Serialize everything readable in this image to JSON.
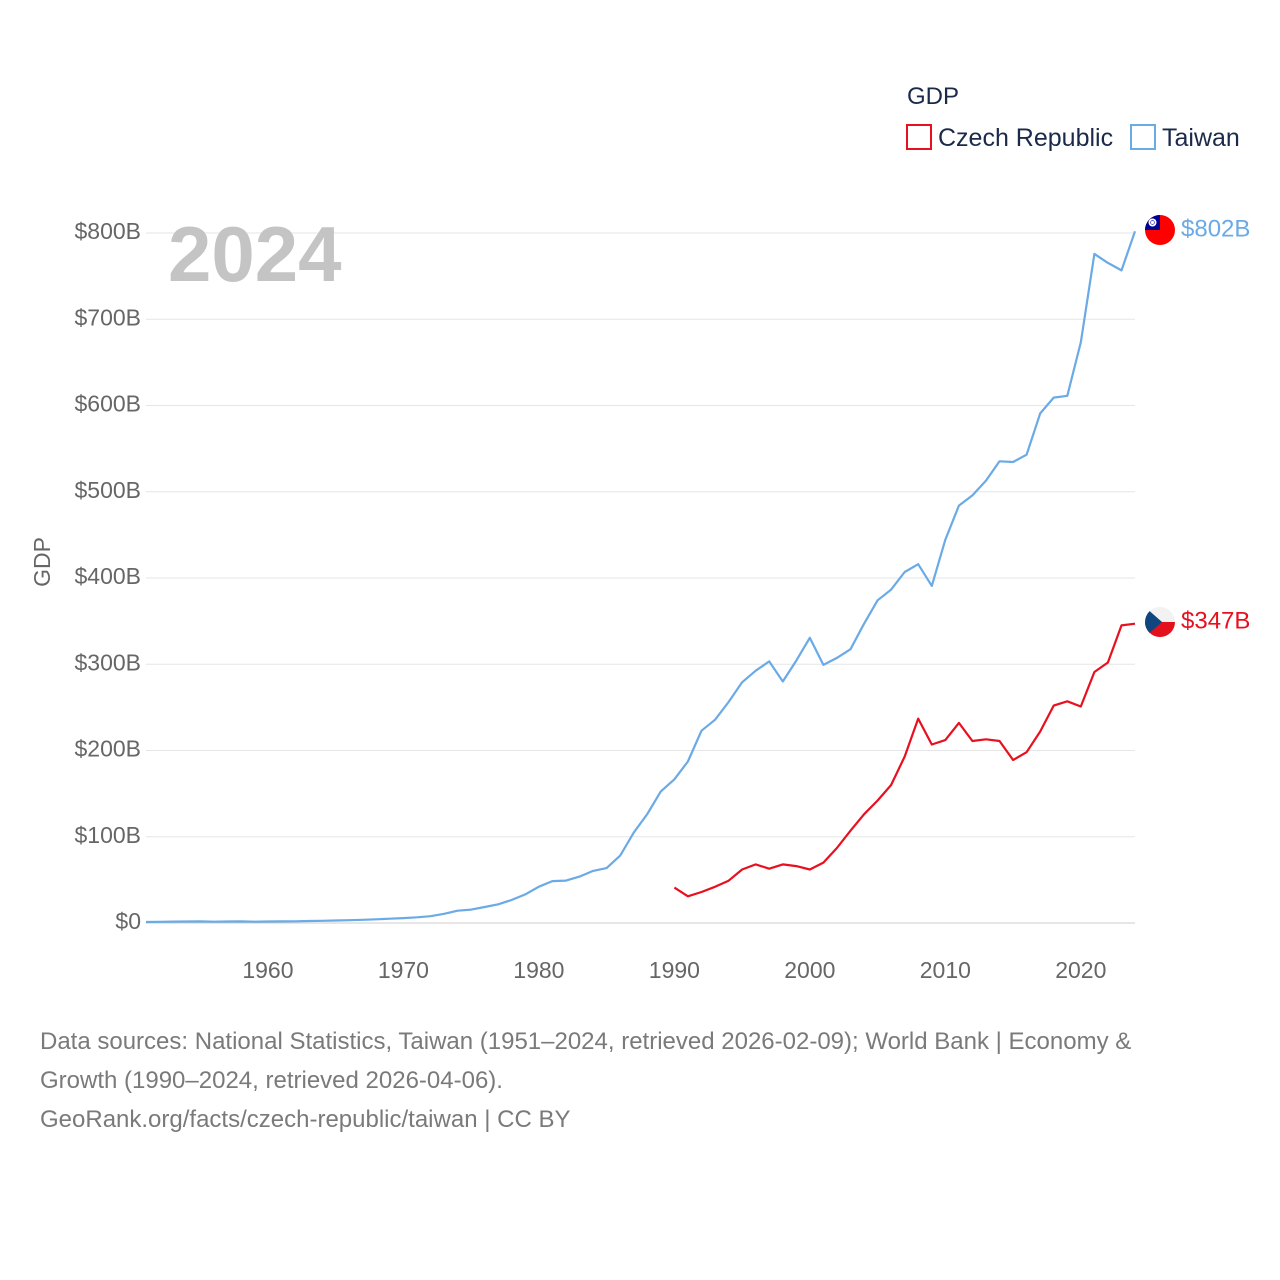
{
  "chart_data": {
    "type": "line",
    "year_label": "2024",
    "ylabel": "GDP",
    "legend_title": "GDP",
    "ylim": [
      0,
      800
    ],
    "xlim": [
      1951,
      2024
    ],
    "y_ticks": [
      {
        "value": 0,
        "label": "$0"
      },
      {
        "value": 100,
        "label": "$100B"
      },
      {
        "value": 200,
        "label": "$200B"
      },
      {
        "value": 300,
        "label": "$300B"
      },
      {
        "value": 400,
        "label": "$400B"
      },
      {
        "value": 500,
        "label": "$500B"
      },
      {
        "value": 600,
        "label": "$600B"
      },
      {
        "value": 700,
        "label": "$700B"
      },
      {
        "value": 800,
        "label": "$800B"
      }
    ],
    "x_ticks": [
      {
        "value": 1960,
        "label": "1960"
      },
      {
        "value": 1970,
        "label": "1970"
      },
      {
        "value": 1980,
        "label": "1980"
      },
      {
        "value": 1990,
        "label": "1990"
      },
      {
        "value": 2000,
        "label": "2000"
      },
      {
        "value": 2010,
        "label": "2010"
      },
      {
        "value": 2020,
        "label": "2020"
      }
    ],
    "series": [
      {
        "name": "Czech Republic",
        "color": "#e8101f",
        "end_label": "$347B",
        "flag": "czech-flag",
        "x": [
          1990,
          1991,
          1992,
          1993,
          1994,
          1995,
          1996,
          1997,
          1998,
          1999,
          2000,
          2001,
          2002,
          2003,
          2004,
          2005,
          2006,
          2007,
          2008,
          2009,
          2010,
          2011,
          2012,
          2013,
          2014,
          2015,
          2016,
          2017,
          2018,
          2019,
          2020,
          2021,
          2022,
          2023,
          2024
        ],
        "values": [
          41,
          31,
          36,
          42,
          49,
          62,
          68,
          63,
          68,
          66,
          62,
          70,
          87,
          107,
          126,
          142,
          160,
          193,
          237,
          207,
          212,
          232,
          211,
          213,
          211,
          189,
          198,
          222,
          252,
          257,
          251,
          291,
          302,
          345,
          347
        ]
      },
      {
        "name": "Taiwan",
        "color": "#6aaae6",
        "end_label": "$802B",
        "flag": "taiwan-flag",
        "x": [
          1951,
          1952,
          1953,
          1954,
          1955,
          1956,
          1957,
          1958,
          1959,
          1960,
          1961,
          1962,
          1963,
          1964,
          1965,
          1966,
          1967,
          1968,
          1969,
          1970,
          1971,
          1972,
          1973,
          1974,
          1975,
          1976,
          1977,
          1978,
          1979,
          1980,
          1981,
          1982,
          1983,
          1984,
          1985,
          1986,
          1987,
          1988,
          1989,
          1990,
          1991,
          1992,
          1993,
          1994,
          1995,
          1996,
          1997,
          1998,
          1999,
          2000,
          2001,
          2002,
          2003,
          2004,
          2005,
          2006,
          2007,
          2008,
          2009,
          2010,
          2011,
          2012,
          2013,
          2014,
          2015,
          2016,
          2017,
          2018,
          2019,
          2020,
          2021,
          2022,
          2023,
          2024
        ],
        "values": [
          1.2,
          1.4,
          1.6,
          1.7,
          1.9,
          1.5,
          1.7,
          1.8,
          1.5,
          1.7,
          1.8,
          2.0,
          2.3,
          2.6,
          2.9,
          3.2,
          3.7,
          4.3,
          5.0,
          5.7,
          6.6,
          7.9,
          10.7,
          14.3,
          15.5,
          18.5,
          21.7,
          26.8,
          33.2,
          42.1,
          48.6,
          49.2,
          53.8,
          60.4,
          63.6,
          78.2,
          104.7,
          126.4,
          152.6,
          166.6,
          187.2,
          222.9,
          235.6,
          256.2,
          279.1,
          292.5,
          303.3,
          280.0,
          304.2,
          330.7,
          299.3,
          307.4,
          317.4,
          346.9,
          374.1,
          386.5,
          406.9,
          416.0,
          390.8,
          444.3,
          483.9,
          495.8,
          512.9,
          535.3,
          534.5,
          543.0,
          590.8,
          609.2,
          611.3,
          673.2,
          775.8,
          765.3,
          756.6,
          802.0
        ]
      }
    ]
  },
  "footer": {
    "line1": "Data sources: National Statistics, Taiwan (1951–2024, retrieved 2026-02-09); World Bank | Economy &",
    "line2": "Growth (1990–2024, retrieved 2026-04-06).",
    "line3": "GeoRank.org/facts/czech-republic/taiwan | CC BY"
  }
}
